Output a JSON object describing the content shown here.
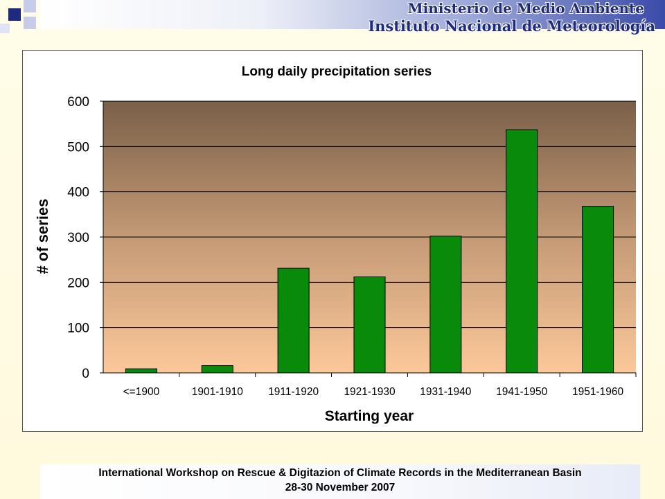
{
  "header": {
    "line1": "Ministerio de Medio Ambiente",
    "line2": "Instituto Nacional de Meteorología"
  },
  "footer": {
    "line1": "International Workshop on Rescue & Digitazion of Climate Records in the Mediterranean Basin",
    "line2": "28-30 November 2007"
  },
  "colors": {
    "bar": "#0a8a0a",
    "plot_top": "#7a6048",
    "plot_bottom": "#fcc89a",
    "header_accent": "#1d2a80"
  },
  "chart_data": {
    "type": "bar",
    "title": "Long daily precipitation series",
    "xlabel": "Starting year",
    "ylabel": "# of series",
    "categories": [
      "<=1900",
      "1901-1910",
      "1911-1920",
      "1921-1930",
      "1931-1940",
      "1941-1950",
      "1951-1960"
    ],
    "values": [
      9,
      16,
      231,
      212,
      302,
      537,
      368
    ],
    "ylim": [
      0,
      600
    ],
    "yticks": [
      0,
      100,
      200,
      300,
      400,
      500,
      600
    ],
    "grid": true,
    "legend": "none"
  }
}
